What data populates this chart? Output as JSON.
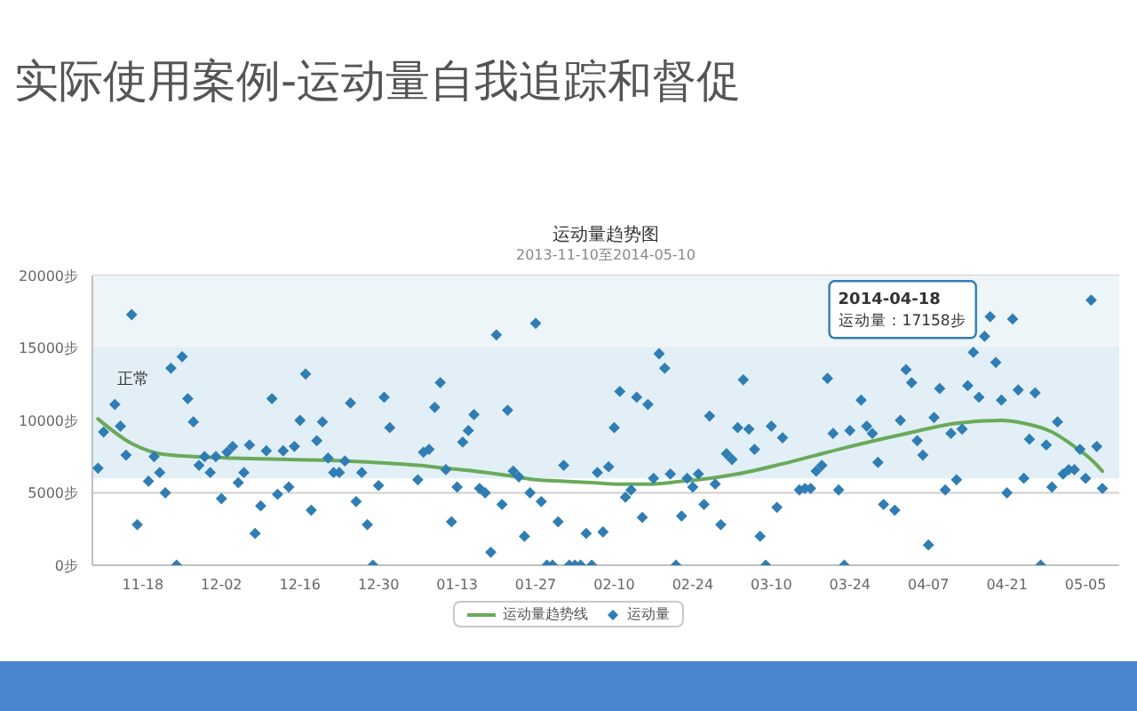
{
  "chart_data": {
    "type": "scatter",
    "title": "运动量趋势图",
    "subtitle": "2013-11-10至2014-05-10",
    "annotations": [
      "实际使用案例-运动量自我追踪和督促",
      {
        "text": "2014-04-18\n运动量：17158步",
        "x": "2014-04-18",
        "y": 17158
      }
    ],
    "xlim": [
      "2013-11-09",
      "2014-05-11"
    ],
    "xticks": [
      {
        "value": "2013-11-18",
        "label": "11-18"
      },
      {
        "value": "2013-12-02",
        "label": "12-02"
      },
      {
        "value": "2013-12-16",
        "label": "12-16"
      },
      {
        "value": "2013-12-30",
        "label": "12-30"
      },
      {
        "value": "2014-01-13",
        "label": "01-13"
      },
      {
        "value": "2014-01-27",
        "label": "01-27"
      },
      {
        "value": "2014-02-10",
        "label": "02-10"
      },
      {
        "value": "2014-02-24",
        "label": "02-24"
      },
      {
        "value": "2014-03-10",
        "label": "03-10"
      },
      {
        "value": "2014-03-24",
        "label": "03-24"
      },
      {
        "value": "2014-04-07",
        "label": "04-07"
      },
      {
        "value": "2014-04-21",
        "label": "04-21"
      },
      {
        "value": "2014-05-05",
        "label": "05-05"
      }
    ],
    "ylim": [
      0,
      20000
    ],
    "yticks": [
      {
        "value": 0,
        "label": "0步"
      },
      {
        "value": 5000,
        "label": "5000步"
      },
      {
        "value": 10000,
        "label": "10000步"
      },
      {
        "value": 15000,
        "label": "15000步"
      },
      {
        "value": 20000,
        "label": "20000步"
      }
    ],
    "grid": "y",
    "legend": "bottom",
    "bands": [
      {
        "axis": "y",
        "from": 6000,
        "to": 15000,
        "label": "正常",
        "color": "#e2eff6"
      },
      {
        "axis": "y",
        "from": 15000,
        "to": 20000,
        "color": "#edf5f9"
      }
    ],
    "series": [
      {
        "name": "运动量趋势线",
        "type": "line",
        "color": "#6aaa5a",
        "marker": "none",
        "line_style": "solid",
        "x": [
          "2013-11-10",
          "2013-11-16",
          "2013-11-21",
          "2013-11-27",
          "2013-12-04",
          "2013-12-14",
          "2013-12-24",
          "2014-01-06",
          "2014-01-11",
          "2014-01-16",
          "2014-01-22",
          "2014-01-27",
          "2014-02-01",
          "2014-02-06",
          "2014-02-11",
          "2014-02-16",
          "2014-02-22",
          "2014-02-27",
          "2014-03-04",
          "2014-03-12",
          "2014-03-22",
          "2014-04-02",
          "2014-04-12",
          "2014-04-20",
          "2014-04-24",
          "2014-04-29",
          "2014-05-03",
          "2014-05-06",
          "2014-05-08"
        ],
        "values": [
          10100,
          8400,
          7700,
          7500,
          7400,
          7300,
          7200,
          6900,
          6700,
          6500,
          6200,
          5900,
          5800,
          5700,
          5600,
          5600,
          5800,
          6000,
          6300,
          7000,
          8000,
          9000,
          9800,
          10000,
          9800,
          9200,
          8200,
          7300,
          6500
        ]
      },
      {
        "name": "运动量",
        "color": "#2f7db3",
        "marker": "diamond",
        "x": [
          "2013-11-10",
          "2013-11-11",
          "2013-11-13",
          "2013-11-14",
          "2013-11-15",
          "2013-11-16",
          "2013-11-17",
          "2013-11-19",
          "2013-11-20",
          "2013-11-21",
          "2013-11-22",
          "2013-11-23",
          "2013-11-24",
          "2013-11-25",
          "2013-11-26",
          "2013-11-27",
          "2013-11-28",
          "2013-11-29",
          "2013-11-30",
          "2013-12-01",
          "2013-12-02",
          "2013-12-03",
          "2013-12-04",
          "2013-12-05",
          "2013-12-06",
          "2013-12-07",
          "2013-12-08",
          "2013-12-09",
          "2013-12-10",
          "2013-12-11",
          "2013-12-12",
          "2013-12-13",
          "2013-12-14",
          "2013-12-15",
          "2013-12-16",
          "2013-12-17",
          "2013-12-18",
          "2013-12-19",
          "2013-12-20",
          "2013-12-21",
          "2013-12-22",
          "2013-12-23",
          "2013-12-24",
          "2013-12-25",
          "2013-12-26",
          "2013-12-27",
          "2013-12-28",
          "2013-12-29",
          "2013-12-30",
          "2013-12-31",
          "2014-01-01",
          "2014-01-06",
          "2014-01-07",
          "2014-01-08",
          "2014-01-09",
          "2014-01-10",
          "2014-01-11",
          "2014-01-12",
          "2014-01-13",
          "2014-01-14",
          "2014-01-15",
          "2014-01-16",
          "2014-01-17",
          "2014-01-18",
          "2014-01-19",
          "2014-01-20",
          "2014-01-21",
          "2014-01-22",
          "2014-01-23",
          "2014-01-24",
          "2014-01-25",
          "2014-01-26",
          "2014-01-27",
          "2014-01-28",
          "2014-01-29",
          "2014-01-30",
          "2014-01-31",
          "2014-02-01",
          "2014-02-02",
          "2014-02-03",
          "2014-02-04",
          "2014-02-05",
          "2014-02-06",
          "2014-02-07",
          "2014-02-08",
          "2014-02-09",
          "2014-02-10",
          "2014-02-11",
          "2014-02-12",
          "2014-02-13",
          "2014-02-14",
          "2014-02-15",
          "2014-02-16",
          "2014-02-17",
          "2014-02-18",
          "2014-02-19",
          "2014-02-20",
          "2014-02-21",
          "2014-02-22",
          "2014-02-23",
          "2014-02-24",
          "2014-02-25",
          "2014-02-26",
          "2014-02-27",
          "2014-02-28",
          "2014-03-01",
          "2014-03-02",
          "2014-03-03",
          "2014-03-04",
          "2014-03-05",
          "2014-03-06",
          "2014-03-07",
          "2014-03-08",
          "2014-03-09",
          "2014-03-10",
          "2014-03-11",
          "2014-03-12",
          "2014-03-15",
          "2014-03-16",
          "2014-03-17",
          "2014-03-18",
          "2014-03-19",
          "2014-03-20",
          "2014-03-21",
          "2014-03-22",
          "2014-03-23",
          "2014-03-24",
          "2014-03-26",
          "2014-03-27",
          "2014-03-28",
          "2014-03-29",
          "2014-03-30",
          "2014-04-01",
          "2014-04-02",
          "2014-04-03",
          "2014-04-04",
          "2014-04-05",
          "2014-04-06",
          "2014-04-07",
          "2014-04-08",
          "2014-04-09",
          "2014-04-10",
          "2014-04-11",
          "2014-04-12",
          "2014-04-13",
          "2014-04-14",
          "2014-04-15",
          "2014-04-16",
          "2014-04-17",
          "2014-04-18",
          "2014-04-19",
          "2014-04-20",
          "2014-04-21",
          "2014-04-22",
          "2014-04-23",
          "2014-04-24",
          "2014-04-25",
          "2014-04-26",
          "2014-04-27",
          "2014-04-28",
          "2014-04-29",
          "2014-04-30",
          "2014-05-01",
          "2014-05-02",
          "2014-05-03",
          "2014-05-04",
          "2014-05-05",
          "2014-05-06",
          "2014-05-07",
          "2014-05-08"
        ],
        "values": [
          6700,
          9200,
          11100,
          9600,
          7600,
          17300,
          2800,
          5800,
          7500,
          6400,
          5000,
          13600,
          0,
          14400,
          11500,
          9900,
          6900,
          7500,
          6400,
          7500,
          4600,
          7800,
          8200,
          5700,
          6400,
          8300,
          2200,
          4100,
          7900,
          11500,
          4900,
          7900,
          5400,
          8200,
          10000,
          13200,
          3800,
          8600,
          9900,
          7400,
          6400,
          6400,
          7200,
          11200,
          4400,
          6400,
          2800,
          0,
          5500,
          11600,
          9500,
          5900,
          7800,
          8000,
          10900,
          12600,
          6600,
          3000,
          5400,
          8500,
          9300,
          10400,
          5300,
          5000,
          900,
          15900,
          4200,
          10700,
          6500,
          6100,
          2000,
          5000,
          16700,
          4400,
          0,
          0,
          3000,
          6900,
          0,
          0,
          0,
          2200,
          0,
          6400,
          2300,
          6800,
          9500,
          12000,
          4700,
          5200,
          11600,
          3300,
          11100,
          6000,
          14600,
          13600,
          6300,
          0,
          3400,
          6000,
          5400,
          6300,
          4200,
          10300,
          5600,
          2800,
          7700,
          7300,
          9500,
          12800,
          9400,
          8000,
          2000,
          0,
          9600,
          4000,
          8800,
          5200,
          5300,
          5300,
          6500,
          6900,
          12900,
          9100,
          5200,
          0,
          9300,
          11400,
          9600,
          9100,
          7100,
          4200,
          3800,
          10000,
          13500,
          12600,
          8600,
          7600,
          1400,
          10200,
          12200,
          5200,
          9100,
          5900,
          9400,
          12400,
          14700,
          11600,
          15800,
          17158,
          14000,
          11400,
          5000,
          17000,
          12100,
          6000,
          8700,
          11900,
          0,
          8300,
          5400,
          9900,
          6300,
          6600,
          6600,
          8000,
          6000,
          18300,
          8200,
          5300
        ]
      }
    ]
  }
}
